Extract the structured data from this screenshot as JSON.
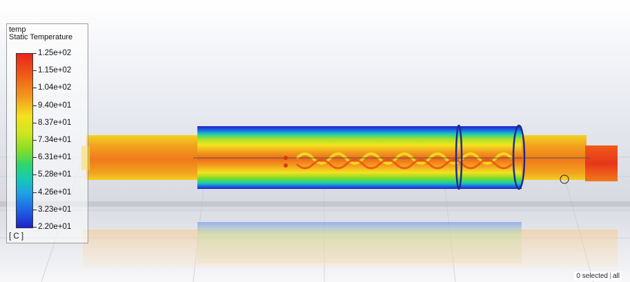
{
  "legend": {
    "variable": "temp",
    "quantity": "Static Temperature",
    "unit": "[ C ]",
    "labels": [
      "1.25e+02",
      "1.15e+02",
      "1.04e+02",
      "9.40e+01",
      "8.37e+01",
      "7.34e+01",
      "6.31e+01",
      "5.28e+01",
      "4.26e+01",
      "3.23e+01",
      "2.20e+01"
    ],
    "colors": [
      "#e8261a",
      "#f05a17",
      "#f39a1e",
      "#f3e31e",
      "#cde61f",
      "#7fdd2a",
      "#2fd56d",
      "#16c9b5",
      "#1fa2e6",
      "#1f62e6",
      "#1f22c8"
    ]
  },
  "status": {
    "selected": "0 selected",
    "all": "all"
  }
}
